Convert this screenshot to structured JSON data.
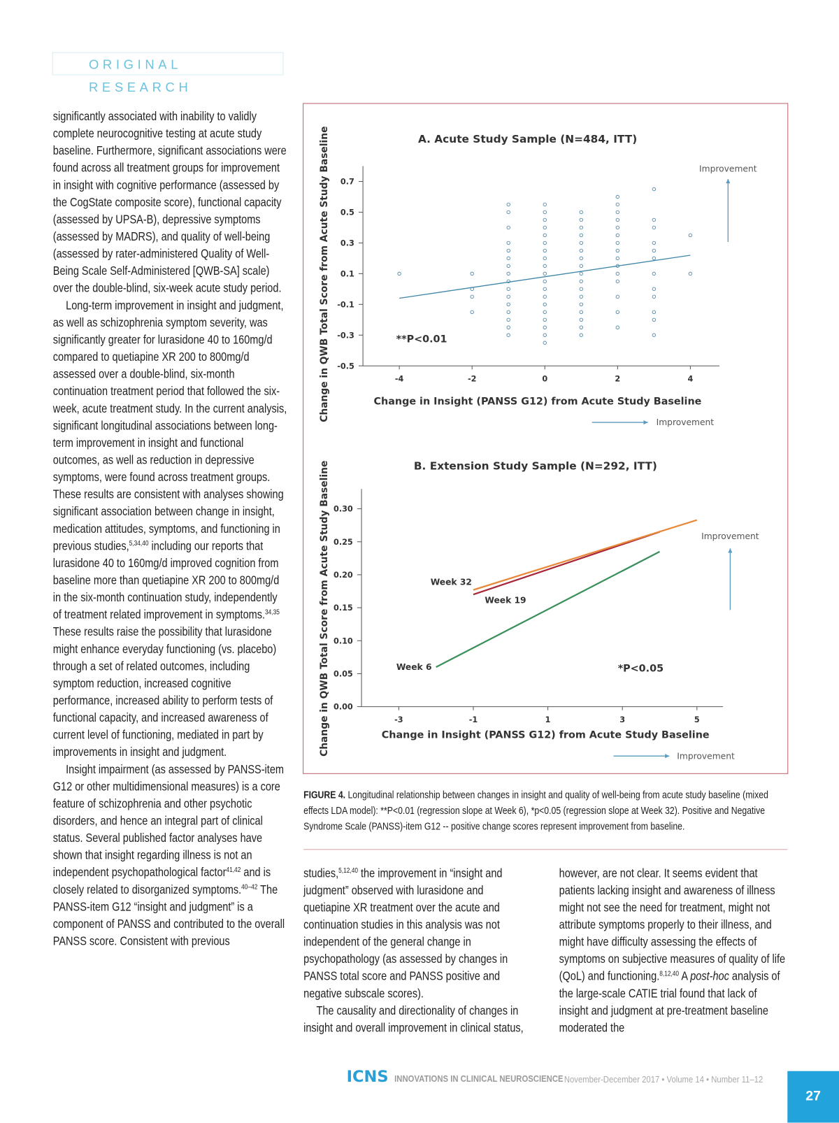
{
  "header": {
    "label": "ORIGINAL RESEARCH"
  },
  "body": {
    "left_column": [
      [
        "significantly associated with inability to validly complete neurocognitive testing at acute study baseline. Furthermore, significant associations were found across all treatment groups for improvement in insight with cognitive performance (assessed by the CogState composite score), functional capacity (assessed by UPSA-B), depressive symptoms (assessed by MADRS), and quality of well-being (assessed by rater-administered Quality of Well-Being Scale Self-Administered [QWB-SA] scale) over the double-blind, six-week acute study period."
      ],
      [
        "Long-term improvement in insight and judgment, as well as schizophrenia symptom severity, was significantly greater for lurasidone 40 to 160mg/d compared to quetiapine XR 200 to 800mg/d assessed over a double-blind, six-month continuation treatment period that followed the six-week, acute treatment study. In the current analysis, significant longitudinal associations between long-term improvement in insight and functional outcomes, as well as reduction in depressive symptoms, were found across treatment groups. These results are consistent with analyses showing significant association between change in insight, medication attitudes, symptoms, and functioning in previous studies,",
        {
          "sup": "5,34,40"
        },
        " including our reports that lurasidone 40 to 160mg/d improved cognition from baseline more than quetiapine XR 200 to 800mg/d in the six-month continuation study, independently of treatment related improvement in symptoms.",
        {
          "sup": "34,35"
        },
        " These results raise the possibility that lurasidone might enhance everyday functioning (vs. placebo) through a set of related outcomes, including symptom reduction, increased cognitive performance, increased ability to perform tests of functional capacity, and increased awareness of current level of functioning, mediated in part by improvements in insight and judgment."
      ],
      [
        "Insight impairment (as assessed by PANSS-item G12 or other multidimensional measures) is a core feature of schizophrenia and other psychotic disorders, and hence an integral part of clinical status. Several published factor analyses have shown that insight regarding illness is not an independent psychopathological factor",
        {
          "sup": "41,42"
        },
        " and is closely related to disorganized symptoms.",
        {
          "sup": "40–42"
        },
        " The PANSS-item G12 “insight and judgment” is a component of PANSS and contributed to the overall PANSS score. Consistent with previous"
      ]
    ],
    "bottom_columns": [
      [
        "studies,",
        {
          "sup": "5,12,40"
        },
        " the improvement in “insight and judgment” observed with lurasidone and quetiapine XR treatment over the acute and continuation studies in this analysis was not independent of the general change in psychopathology (as assessed by changes in PANSS total score and PANSS positive and negative subscale scores)."
      ],
      [
        "The causality and directionality of changes in insight and overall improvement in clinical status, however, are not clear. It seems evident that patients lacking insight and awareness of illness might not see the need for treatment, might not attribute symptoms properly to their illness, and might have difficulty assessing the effects of symptoms on subjective measures of quality of life (QoL) and functioning.",
        {
          "sup": "8,12,40"
        },
        " A ",
        {
          "em": "post-hoc"
        },
        " analysis of the large-scale CATIE trial found that lack of insight and judgment at pre-treatment baseline moderated the"
      ]
    ]
  },
  "chart_data": [
    {
      "type": "scatter",
      "title": "A. Acute Study Sample (N=484, ITT)",
      "x_label": "Change in Insight (PANSS G12) from Acute Study Baseline",
      "y_label": "Change in QWB Total Score from Acute Study Baseline",
      "xlim": [
        -5,
        4.8
      ],
      "xticks": [
        -4,
        -2,
        0,
        2,
        4
      ],
      "ylim": [
        -0.5,
        0.8
      ],
      "yticks": [
        -0.5,
        -0.3,
        -0.1,
        0.1,
        0.3,
        0.5,
        0.7
      ],
      "series": [
        {
          "type": "scatter",
          "color": "#4a8fb5",
          "x": [
            -4,
            -2,
            -2,
            -2,
            -2,
            -1,
            -1,
            -1,
            -1,
            -1,
            -1,
            -1,
            -1,
            -1,
            -1,
            -1,
            -1,
            -1,
            -1,
            -1,
            -1,
            0,
            0,
            0,
            0,
            0,
            0,
            0,
            0,
            0,
            0,
            0,
            0,
            0,
            0,
            0,
            0,
            0,
            0,
            0,
            1,
            1,
            1,
            1,
            1,
            1,
            1,
            1,
            1,
            1,
            1,
            1,
            1,
            1,
            1,
            1,
            1,
            2,
            2,
            2,
            2,
            2,
            2,
            2,
            2,
            2,
            2,
            2,
            2,
            2,
            2,
            2,
            3,
            3,
            3,
            3,
            3,
            3,
            3,
            3,
            3,
            3,
            3,
            3,
            4,
            4
          ],
          "values": [
            0.1,
            0.1,
            0,
            -0.05,
            -0.15,
            0.55,
            0.5,
            0.4,
            0.3,
            0.25,
            0.2,
            0.15,
            0.1,
            0.05,
            0,
            -0.05,
            -0.1,
            -0.15,
            -0.2,
            -0.25,
            -0.3,
            0.55,
            0.5,
            0.45,
            0.4,
            0.35,
            0.3,
            0.25,
            0.2,
            0.15,
            0.1,
            0.05,
            0,
            -0.05,
            -0.1,
            -0.15,
            -0.2,
            -0.25,
            -0.3,
            -0.35,
            0.5,
            0.45,
            0.4,
            0.35,
            0.3,
            0.25,
            0.2,
            0.15,
            0.1,
            0.05,
            0,
            -0.05,
            -0.1,
            -0.15,
            -0.2,
            -0.25,
            -0.3,
            0.6,
            0.55,
            0.5,
            0.45,
            0.4,
            0.35,
            0.3,
            0.25,
            0.2,
            0.15,
            0.1,
            0.05,
            -0.05,
            -0.15,
            -0.25,
            0.65,
            0.45,
            0.4,
            0.3,
            0.25,
            0.2,
            0.1,
            0,
            -0.05,
            -0.15,
            -0.2,
            -0.3,
            0.35,
            0.1
          ]
        },
        {
          "type": "line",
          "color": "#3f86a8",
          "x": [
            -4,
            4
          ],
          "values": [
            -0.06,
            0.22
          ]
        }
      ],
      "annotations": {
        "significance": "**P<0.01",
        "improvement_y": "Improvement",
        "improvement_x": "Improvement"
      }
    },
    {
      "type": "line",
      "title": "B. Extension Study Sample (N=292, ITT)",
      "x_label": "Change in Insight (PANSS G12) from Acute Study Baseline",
      "y_label": "Change in QWB Total Score from Acute Study Baseline",
      "xlim": [
        -4,
        5.7
      ],
      "xticks": [
        -3,
        -1,
        1,
        3,
        5
      ],
      "ylim": [
        0,
        0.33
      ],
      "yticks": [
        {
          "value": 0,
          "label": "0.00"
        },
        0.05,
        {
          "value": 0.1,
          "label": "0.10"
        },
        0.15,
        {
          "value": 0.2,
          "label": "0.20"
        },
        0.25,
        {
          "value": 0.3,
          "label": "0.30"
        }
      ],
      "series": [
        {
          "name": "Week 6",
          "color": "#3a8f5a",
          "x": [
            -2,
            4
          ],
          "values": [
            0.06,
            0.235
          ]
        },
        {
          "name": "Week 19",
          "color": "#a8283a",
          "x": [
            -1,
            4
          ],
          "values": [
            0.17,
            0.265
          ]
        },
        {
          "name": "Week 32",
          "color": "#e8893a",
          "x": [
            -1,
            5
          ],
          "values": [
            0.177,
            0.283
          ]
        }
      ],
      "annotations": {
        "significance": "*P<0.05",
        "improvement_y": "Improvement",
        "improvement_x": "Improvement"
      }
    }
  ],
  "figure": {
    "caption": {
      "label": "FIGURE 4.",
      "text": " Longitudinal relationship between changes in insight and quality of well-being from acute study baseline (mixed effects LDA model): **P<0.01 (regression slope at Week 6), *p<0.05 (regression slope at Week 32). Positive and Negative Syndrome Scale (PANSS)-item G12 -- positive change scores represent improvement from baseline."
    }
  },
  "footer": {
    "brand": "ICNS",
    "journal": "INNOVATIONS IN CLINICAL NEUROSCIENCE",
    "issue": "November-December 2017 • Volume 14 • Number 11–12",
    "page": "27"
  }
}
